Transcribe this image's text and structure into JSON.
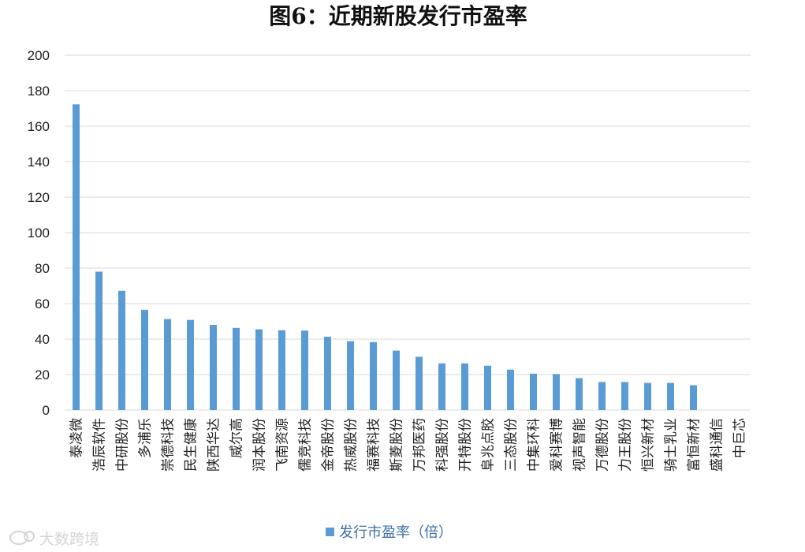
{
  "chart_data": {
    "type": "bar",
    "title": "图6：近期新股发行市盈率",
    "categories": [
      "泰凌微",
      "浩辰软件",
      "中研股份",
      "多浦乐",
      "崇德科技",
      "民生健康",
      "陕西华达",
      "威尔高",
      "润本股份",
      "飞南资源",
      "儒竞科技",
      "金帝股份",
      "热威股份",
      "福赛科技",
      "斯菱股份",
      "万邦医药",
      "科强股份",
      "开特股份",
      "阜兆点胶",
      "三态股份",
      "中集环科",
      "爱科赛博",
      "视声智能",
      "万德股份",
      "力王股份",
      "恒兴新材",
      "骑士乳业",
      "富恒新材",
      "盛科通信",
      "中巨芯"
    ],
    "series": [
      {
        "name": "发行市盈率（倍）",
        "values": [
          172.3,
          78,
          67.2,
          56.5,
          51.3,
          50.8,
          48,
          46.3,
          45.5,
          45,
          44.8,
          41.3,
          38.8,
          38.3,
          33.5,
          30,
          26.3,
          26.3,
          25,
          22.8,
          20.5,
          20.3,
          18,
          15.8,
          15.8,
          15.3,
          15.3,
          14,
          0,
          0
        ]
      }
    ],
    "ylim": [
      0,
      200
    ],
    "yticks": [
      0,
      20,
      40,
      60,
      80,
      100,
      120,
      140,
      160,
      180,
      200
    ],
    "grid": true,
    "legend_position": "bottom",
    "bar_color": "#5b9bd5"
  },
  "watermark": {
    "text": "大数跨境",
    "icon": "cloud-chat-icon"
  }
}
